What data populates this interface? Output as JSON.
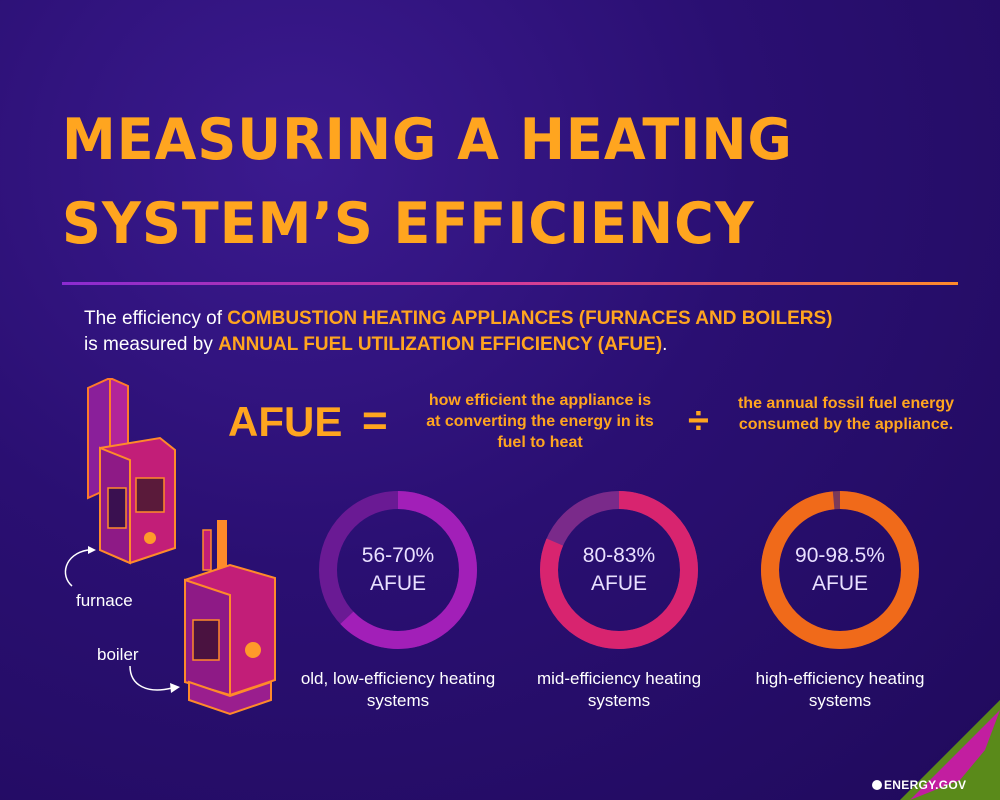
{
  "title": {
    "line1": "MEASURING A HEATING",
    "line2": "SYSTEM’S EFFICIENCY"
  },
  "intro": {
    "part1": "The efficiency of ",
    "highlight1": "COMBUSTION HEATING APPLIANCES (FURNACES AND BOILERS)",
    "part2": "is measured by ",
    "highlight2": "ANNUAL FUEL UTILIZATION EFFICIENCY (AFUE)",
    "part3": "."
  },
  "formula": {
    "label": "AFUE",
    "equals": "=",
    "numerator": "how efficient the appliance is at converting the energy in its fuel to heat",
    "divide": "÷",
    "denominator": "the annual fossil fuel energy consumed by the appliance."
  },
  "gauges": [
    {
      "range": "56-70%",
      "unit": "AFUE",
      "caption": "old, low-efficiency heating systems",
      "fraction": 0.63,
      "color": "#a21fb8",
      "track": "#6a1a94"
    },
    {
      "range": "80-83%",
      "unit": "AFUE",
      "caption": "mid-efficiency heating systems",
      "fraction": 0.815,
      "color": "#d8246f",
      "track": "#7a2a8a"
    },
    {
      "range": "90-98.5%",
      "unit": "AFUE",
      "caption": "high-efficiency heating systems",
      "fraction": 0.985,
      "color": "#f06a1a",
      "track": "#7a3a5a"
    }
  ],
  "appliances": {
    "furnace": "furnace",
    "boiler": "boiler"
  },
  "logo": {
    "text": "ENERGY.GOV"
  },
  "colors": {
    "accent": "#ffa51f",
    "background": "#2a0f72"
  }
}
